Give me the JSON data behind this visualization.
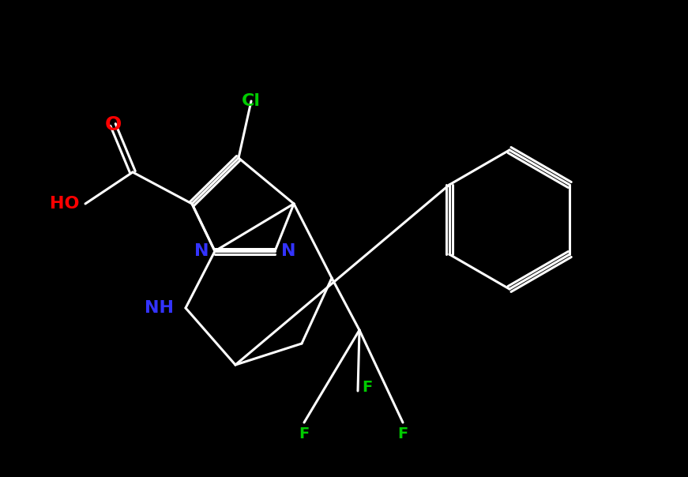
{
  "background_color": "#000000",
  "bond_color": "#ffffff",
  "atom_colors": {
    "O": "#ff0000",
    "N": "#3333ff",
    "Cl": "#00cc00",
    "F": "#00cc00",
    "C": "#ffffff",
    "H": "#ffffff"
  },
  "font_size": 16,
  "line_width": 2.2
}
